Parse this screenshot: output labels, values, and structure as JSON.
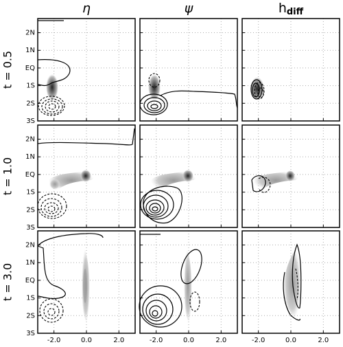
{
  "column_titles": [
    {
      "text": "η"
    },
    {
      "text": "ψ"
    },
    {
      "text": "h",
      "sub": "diff"
    }
  ],
  "row_titles": [
    "t = 0.5",
    "t = 1.0",
    "t = 3.0"
  ],
  "xlim": [
    -3,
    3
  ],
  "xticks": [
    {
      "value": -2,
      "label": "-2.0"
    },
    {
      "value": 0,
      "label": "0.0"
    },
    {
      "value": 2,
      "label": "2.0"
    }
  ],
  "ylim": [
    -3,
    2.8
  ],
  "yticks": [
    {
      "value": 2,
      "label": "2N"
    },
    {
      "value": 1,
      "label": "1N"
    },
    {
      "value": 0,
      "label": "EQ"
    },
    {
      "value": -1,
      "label": "1S"
    },
    {
      "value": -2,
      "label": "2S"
    },
    {
      "value": -3,
      "label": "3S"
    }
  ],
  "grid": true
}
